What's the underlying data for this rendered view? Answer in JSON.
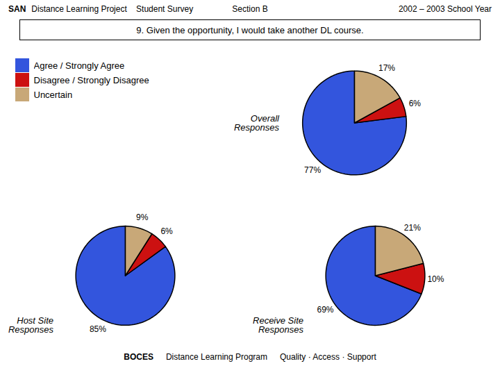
{
  "title": "9. Given the opportunity, I would take another DL course.",
  "annotations": [
    "SAN",
    "Distance Learning Project    Student Survey",
    "Section B",
    "2002 – 2003 School Year",
    "BOCES",
    "Distance Learning Program",
    "Quality · Access · Support"
  ],
  "chart_data": [
    {
      "type": "pie",
      "title": "Overall\nResponses",
      "categories": [
        "Agree / Strongly Agree",
        "Disagree / Strongly Disagree",
        "Uncertain"
      ],
      "values": [
        77,
        6,
        17
      ],
      "value_labels": [
        "77%",
        "6%",
        "17%"
      ],
      "colors": [
        "#3355dd",
        "#cc1111",
        "#c8a878"
      ],
      "data_labels": true,
      "legend": "top-left"
    },
    {
      "type": "pie",
      "title": "Host Site\nResponses",
      "categories": [
        "Agree / Strongly Agree",
        "Disagree / Strongly Disagree",
        "Uncertain"
      ],
      "values": [
        85,
        6,
        9
      ],
      "value_labels": [
        "85%",
        "6%",
        "9%"
      ],
      "colors": [
        "#3355dd",
        "#cc1111",
        "#c8a878"
      ],
      "data_labels": true
    },
    {
      "type": "pie",
      "title": "Receive Site\nResponses",
      "categories": [
        "Agree / Strongly Agree",
        "Disagree / Strongly Disagree",
        "Uncertain"
      ],
      "values": [
        69,
        10,
        21
      ],
      "value_labels": [
        "69%",
        "10%",
        "21%"
      ],
      "colors": [
        "#3355dd",
        "#cc1111",
        "#c8a878"
      ],
      "data_labels": true
    }
  ]
}
